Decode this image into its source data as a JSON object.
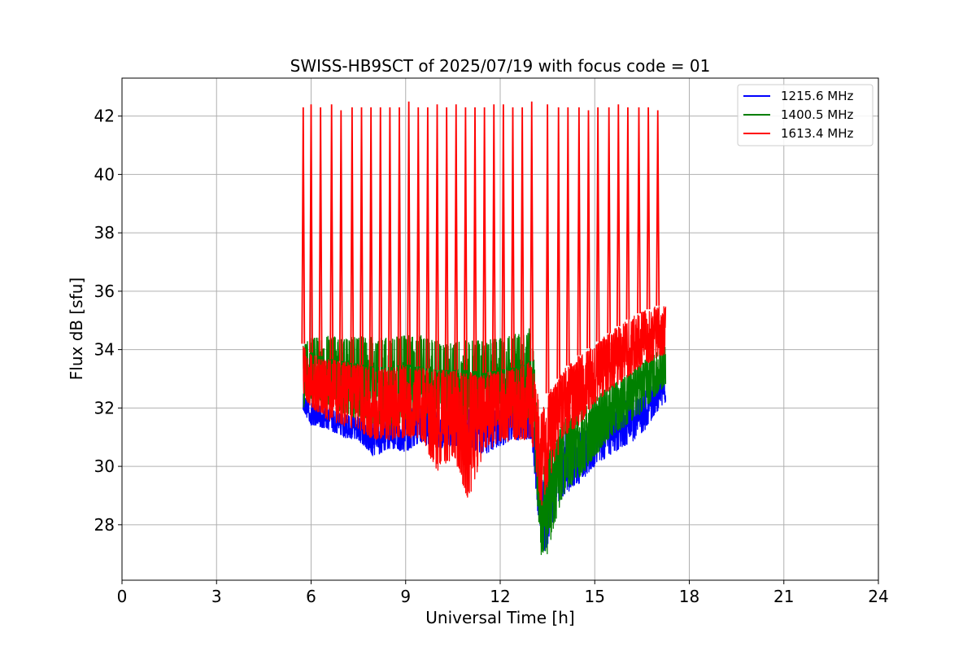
{
  "chart_data": {
    "type": "line",
    "title": "SWISS-HB9SCT of 2025/07/19 with focus code = 01",
    "xlabel": "Universal Time [h]",
    "ylabel": "Flux dB [sfu]",
    "xlim": [
      0,
      24
    ],
    "ylim": [
      26.1,
      43.3
    ],
    "x_ticks": [
      0,
      3,
      6,
      9,
      12,
      15,
      18,
      21,
      24
    ],
    "y_ticks": [
      28,
      30,
      32,
      34,
      36,
      38,
      40,
      42
    ],
    "grid": true,
    "legend_position": "top-right",
    "series": [
      {
        "name": "1215.6 MHz",
        "color": "#0000ff",
        "envelope": {
          "x": [
            5.75,
            6.0,
            6.5,
            7.0,
            7.5,
            8.0,
            8.5,
            9.0,
            9.5,
            10.0,
            10.5,
            11.0,
            11.5,
            12.0,
            12.5,
            13.0,
            13.3,
            13.5,
            13.8,
            14.0,
            14.5,
            15.0,
            15.5,
            16.0,
            16.5,
            17.0,
            17.25
          ],
          "low": [
            31.9,
            31.4,
            31.3,
            31.0,
            30.9,
            30.3,
            30.6,
            30.5,
            30.8,
            30.6,
            30.7,
            30.6,
            30.4,
            30.7,
            30.9,
            30.9,
            27.0,
            27.2,
            28.6,
            29.0,
            29.4,
            30.0,
            30.4,
            30.7,
            31.1,
            31.9,
            32.2
          ],
          "high": [
            32.6,
            32.2,
            32.0,
            31.8,
            31.7,
            31.5,
            31.6,
            31.8,
            32.2,
            31.9,
            31.7,
            32.0,
            31.9,
            32.0,
            32.6,
            32.3,
            29.5,
            29.8,
            30.5,
            31.2,
            31.2,
            31.5,
            31.8,
            32.3,
            32.4,
            33.2,
            33.0
          ]
        }
      },
      {
        "name": "1400.5 MHz",
        "color": "#008000",
        "envelope": {
          "x": [
            5.75,
            6.0,
            6.5,
            7.0,
            7.5,
            8.0,
            8.5,
            9.0,
            9.5,
            10.0,
            10.5,
            11.0,
            11.5,
            12.0,
            12.5,
            13.0,
            13.3,
            13.5,
            13.8,
            14.0,
            14.5,
            15.0,
            15.5,
            16.0,
            16.5,
            17.0,
            17.25
          ],
          "low": [
            32.0,
            32.2,
            32.0,
            31.8,
            31.6,
            31.4,
            31.2,
            31.5,
            31.6,
            31.5,
            31.6,
            31.4,
            31.3,
            31.6,
            31.8,
            31.3,
            26.9,
            27.0,
            28.3,
            29.0,
            29.6,
            30.3,
            31.0,
            31.4,
            31.8,
            32.5,
            32.8
          ],
          "high": [
            34.3,
            34.4,
            34.5,
            34.4,
            34.5,
            34.4,
            34.4,
            34.5,
            34.5,
            34.3,
            34.2,
            34.4,
            34.3,
            34.4,
            34.6,
            34.8,
            30.0,
            30.5,
            31.0,
            31.6,
            32.0,
            32.4,
            32.8,
            33.1,
            33.6,
            34.0,
            34.2
          ]
        }
      },
      {
        "name": "1613.4 MHz",
        "color": "#ff0000",
        "envelope": {
          "x": [
            5.75,
            6.0,
            6.5,
            7.0,
            7.5,
            8.0,
            8.5,
            9.0,
            9.5,
            10.0,
            10.5,
            11.0,
            11.5,
            12.0,
            12.5,
            13.0,
            13.3,
            13.5,
            13.8,
            14.0,
            14.5,
            15.0,
            15.5,
            16.0,
            16.5,
            17.0,
            17.25
          ],
          "low": [
            32.4,
            32.0,
            31.6,
            31.4,
            31.2,
            30.9,
            30.9,
            31.0,
            30.9,
            29.8,
            30.3,
            28.8,
            30.5,
            30.8,
            30.9,
            30.9,
            28.5,
            29.3,
            30.2,
            31.0,
            31.4,
            32.1,
            32.6,
            33.0,
            33.4,
            33.7,
            33.8
          ],
          "high": [
            34.2,
            33.9,
            33.7,
            33.6,
            33.5,
            33.4,
            33.4,
            33.5,
            33.4,
            33.3,
            33.3,
            33.3,
            33.2,
            33.3,
            33.4,
            33.6,
            31.8,
            32.5,
            32.9,
            33.3,
            33.8,
            34.2,
            34.6,
            35.0,
            35.3,
            35.5,
            35.5
          ]
        },
        "spikes": {
          "x": [
            5.75,
            6.0,
            6.3,
            6.65,
            6.95,
            7.3,
            7.6,
            7.9,
            8.2,
            8.5,
            8.8,
            9.1,
            9.4,
            9.7,
            10.0,
            10.3,
            10.6,
            10.9,
            11.2,
            11.5,
            11.8,
            12.1,
            12.4,
            12.7,
            13.0,
            13.5,
            13.85,
            14.15,
            14.5,
            14.8,
            15.1,
            15.45,
            15.75,
            16.05,
            16.4,
            16.7,
            17.0
          ],
          "peak": [
            42.3,
            42.4,
            42.3,
            42.4,
            42.2,
            42.3,
            42.3,
            42.3,
            42.3,
            42.3,
            42.3,
            42.5,
            42.3,
            42.3,
            42.4,
            42.3,
            42.4,
            42.3,
            42.3,
            42.3,
            42.4,
            42.4,
            42.3,
            42.3,
            42.5,
            42.4,
            42.3,
            42.3,
            42.3,
            42.2,
            42.3,
            42.3,
            42.4,
            42.3,
            42.3,
            42.3,
            42.2
          ]
        }
      }
    ]
  }
}
